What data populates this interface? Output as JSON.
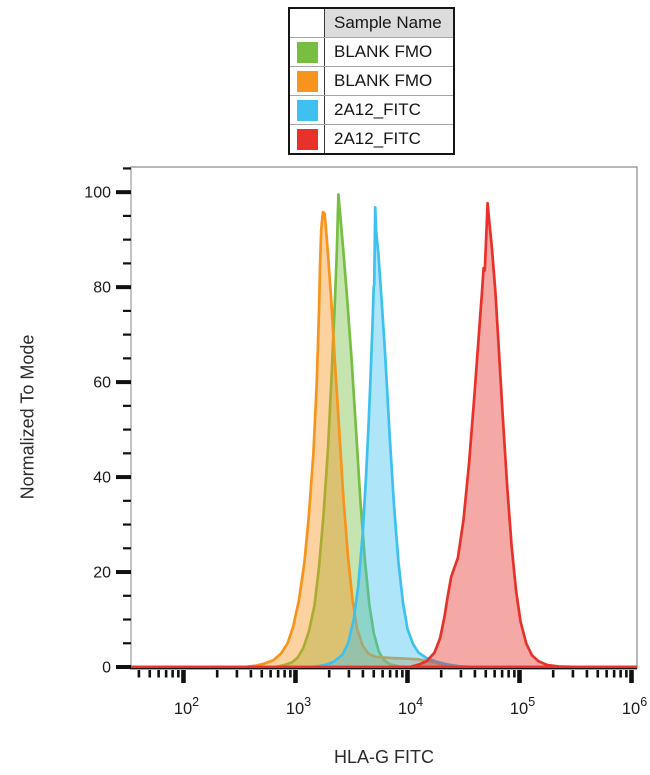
{
  "legend": {
    "header": "Sample Name",
    "items": [
      {
        "label": "BLANK FMO",
        "color": "#77BE43"
      },
      {
        "label": "BLANK FMO",
        "color": "#F7941D"
      },
      {
        "label": "2A12_FITC",
        "color": "#3EC1F0"
      },
      {
        "label": "2A12_FITC",
        "color": "#E8312B"
      }
    ]
  },
  "chart_data": {
    "type": "area",
    "variant": "flow-cytometry-histogram-overlay",
    "title": "",
    "xlabel": "HLA-G FITC",
    "ylabel": "Normalized To Mode",
    "x_scale": "log",
    "x_range": [
      34,
      1120000
    ],
    "y_range": [
      0,
      105.3
    ],
    "x_major_ticks": [
      100,
      1000,
      10000,
      100000,
      1000000
    ],
    "x_major_tick_exponents": [
      2,
      3,
      4,
      5,
      6
    ],
    "y_major_ticks": [
      0,
      20,
      40,
      60,
      80,
      100
    ],
    "y_minor_step": 5,
    "grid": false,
    "legend_position": "top-center",
    "fill_opacity": 0.42,
    "series": [
      {
        "name": "BLANK FMO",
        "color": "#77BE43",
        "peak_x": 2400,
        "peak_y": 99.5,
        "points": [
          [
            34,
            0
          ],
          [
            661,
            0
          ],
          [
            794,
            0.4
          ],
          [
            933,
            1
          ],
          [
            1047,
            2
          ],
          [
            1175,
            4
          ],
          [
            1318,
            7.5
          ],
          [
            1479,
            13
          ],
          [
            1622,
            21
          ],
          [
            1778,
            32
          ],
          [
            1950,
            46
          ],
          [
            2089,
            60
          ],
          [
            2239,
            76
          ],
          [
            2344,
            88
          ],
          [
            2416,
            99.5
          ],
          [
            2512,
            95
          ],
          [
            2692,
            87
          ],
          [
            2884,
            78
          ],
          [
            3162,
            65
          ],
          [
            3467,
            50
          ],
          [
            3802,
            35
          ],
          [
            4169,
            22.5
          ],
          [
            4571,
            13
          ],
          [
            5012,
            7
          ],
          [
            5559,
            3.2
          ],
          [
            6166,
            1.4
          ],
          [
            7079,
            0.5
          ],
          [
            8511,
            0.1
          ],
          [
            10471,
            0
          ],
          [
            1120000,
            0
          ]
        ]
      },
      {
        "name": "BLANK FMO",
        "color": "#F7941D",
        "peak_x": 1760,
        "peak_y": 95.8,
        "points": [
          [
            34,
            0
          ],
          [
            355,
            0
          ],
          [
            447,
            0.3
          ],
          [
            525,
            0.7
          ],
          [
            631,
            1.4
          ],
          [
            741,
            2.8
          ],
          [
            851,
            5
          ],
          [
            955,
            8.5
          ],
          [
            1072,
            14
          ],
          [
            1202,
            22
          ],
          [
            1318,
            32
          ],
          [
            1445,
            45
          ],
          [
            1549,
            60
          ],
          [
            1622,
            75
          ],
          [
            1660,
            85
          ],
          [
            1698,
            92
          ],
          [
            1758,
            95.8
          ],
          [
            1820,
            95.5
          ],
          [
            1862,
            93
          ],
          [
            1950,
            87
          ],
          [
            2089,
            77
          ],
          [
            2239,
            65
          ],
          [
            2455,
            50
          ],
          [
            2692,
            35
          ],
          [
            2951,
            23
          ],
          [
            3236,
            14
          ],
          [
            3548,
            8
          ],
          [
            3981,
            4.5
          ],
          [
            4467,
            2.8
          ],
          [
            5248,
            2.1
          ],
          [
            7079,
            1.9
          ],
          [
            10000,
            1.75
          ],
          [
            12589,
            1.6
          ],
          [
            15849,
            1.2
          ],
          [
            19953,
            0.6
          ],
          [
            26303,
            0.2
          ],
          [
            35481,
            0
          ],
          [
            1120000,
            0
          ]
        ]
      },
      {
        "name": "2A12_FITC",
        "color": "#3EC1F0",
        "peak_x": 5150,
        "peak_y": 96.8,
        "points": [
          [
            34,
            0
          ],
          [
            1445,
            0
          ],
          [
            1820,
            0.4
          ],
          [
            2188,
            1.1
          ],
          [
            2630,
            2.6
          ],
          [
            2951,
            5
          ],
          [
            3311,
            10
          ],
          [
            3631,
            17
          ],
          [
            3981,
            28
          ],
          [
            4266,
            40
          ],
          [
            4519,
            52
          ],
          [
            4732,
            64
          ],
          [
            4898,
            74
          ],
          [
            4989,
            80
          ],
          [
            5047,
            80.5
          ],
          [
            5093,
            88
          ],
          [
            5152,
            96.8
          ],
          [
            5248,
            92
          ],
          [
            5495,
            87
          ],
          [
            5888,
            77
          ],
          [
            6310,
            66
          ],
          [
            6918,
            49
          ],
          [
            7586,
            34
          ],
          [
            8318,
            22
          ],
          [
            9120,
            13.5
          ],
          [
            10000,
            8
          ],
          [
            11220,
            4.8
          ],
          [
            12589,
            3
          ],
          [
            14791,
            1.9
          ],
          [
            18197,
            1.1
          ],
          [
            22909,
            0.5
          ],
          [
            30200,
            0.1
          ],
          [
            39811,
            0
          ],
          [
            1120000,
            0
          ]
        ]
      },
      {
        "name": "2A12_FITC",
        "color": "#E8312B",
        "peak_x": 51880,
        "peak_y": 97.7,
        "points": [
          [
            34,
            0
          ],
          [
            10471,
            0
          ],
          [
            12589,
            0.5
          ],
          [
            14791,
            1.2
          ],
          [
            17378,
            3
          ],
          [
            19500,
            6
          ],
          [
            21380,
            10.5
          ],
          [
            22909,
            15
          ],
          [
            24547,
            19
          ],
          [
            26303,
            21
          ],
          [
            28184,
            23
          ],
          [
            31623,
            31
          ],
          [
            35481,
            43
          ],
          [
            39811,
            58
          ],
          [
            43652,
            71
          ],
          [
            46238,
            79
          ],
          [
            47863,
            84
          ],
          [
            48978,
            83.5
          ],
          [
            50119,
            89
          ],
          [
            51880,
            97.7
          ],
          [
            53703,
            94
          ],
          [
            56885,
            88
          ],
          [
            60954,
            79
          ],
          [
            65313,
            67
          ],
          [
            70795,
            53
          ],
          [
            77625,
            38
          ],
          [
            85114,
            25.5
          ],
          [
            93325,
            16
          ],
          [
            102329,
            9.5
          ],
          [
            114815,
            5
          ],
          [
            128825,
            2.5
          ],
          [
            147911,
            1.2
          ],
          [
            177828,
            0.4
          ],
          [
            223872,
            0.1
          ],
          [
            316228,
            0
          ],
          [
            1120000,
            0
          ]
        ]
      }
    ]
  }
}
